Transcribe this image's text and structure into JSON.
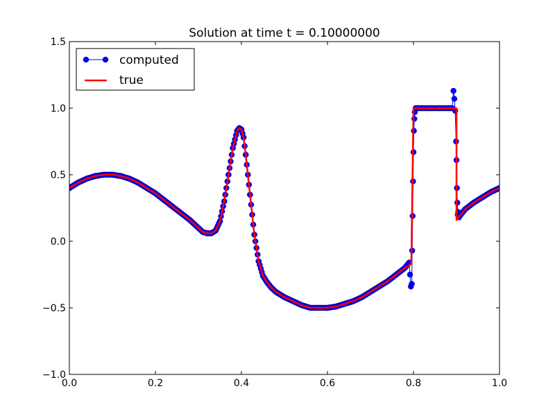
{
  "chart_data": {
    "type": "line",
    "title": "Solution at time t =     0.10000000",
    "xlabel": "",
    "ylabel": "",
    "xlim": [
      0.0,
      1.0
    ],
    "ylim": [
      -1.0,
      1.5
    ],
    "x_ticks": [
      "0.0",
      "0.2",
      "0.4",
      "0.6",
      "0.8",
      "1.0"
    ],
    "y_ticks": [
      "−1.0",
      "−0.5",
      "0.0",
      "0.5",
      "1.0",
      "1.5"
    ],
    "grid": false,
    "legend_position": "top-left",
    "series": [
      {
        "name": "computed",
        "style": "line-with-circle-markers",
        "color": "#0000ff",
        "marker_edge": "#000080",
        "x": [
          0.0,
          0.02,
          0.04,
          0.06,
          0.08,
          0.1,
          0.12,
          0.14,
          0.16,
          0.18,
          0.2,
          0.22,
          0.24,
          0.26,
          0.28,
          0.3,
          0.31,
          0.32,
          0.33,
          0.34,
          0.35,
          0.36,
          0.37,
          0.38,
          0.39,
          0.395,
          0.4,
          0.405,
          0.41,
          0.42,
          0.43,
          0.44,
          0.45,
          0.46,
          0.47,
          0.48,
          0.5,
          0.52,
          0.54,
          0.56,
          0.58,
          0.6,
          0.62,
          0.64,
          0.66,
          0.68,
          0.7,
          0.72,
          0.74,
          0.76,
          0.78,
          0.79,
          0.792,
          0.794,
          0.796,
          0.797,
          0.798,
          0.799,
          0.8,
          0.801,
          0.802,
          0.803,
          0.805,
          0.81,
          0.82,
          0.84,
          0.86,
          0.88,
          0.89,
          0.893,
          0.895,
          0.897,
          0.899,
          0.9,
          0.901,
          0.902,
          0.903,
          0.904,
          0.906,
          0.91,
          0.92,
          0.94,
          0.96,
          0.98,
          1.0
        ],
        "y": [
          0.4,
          0.44,
          0.47,
          0.49,
          0.5,
          0.5,
          0.49,
          0.47,
          0.44,
          0.4,
          0.36,
          0.31,
          0.26,
          0.21,
          0.16,
          0.1,
          0.07,
          0.06,
          0.06,
          0.08,
          0.15,
          0.3,
          0.5,
          0.7,
          0.83,
          0.85,
          0.84,
          0.78,
          0.65,
          0.35,
          0.05,
          -0.15,
          -0.26,
          -0.31,
          -0.35,
          -0.38,
          -0.42,
          -0.45,
          -0.48,
          -0.5,
          -0.5,
          -0.5,
          -0.49,
          -0.47,
          -0.45,
          -0.42,
          -0.38,
          -0.34,
          -0.3,
          -0.25,
          -0.2,
          -0.16,
          -0.25,
          -0.34,
          -0.32,
          -0.07,
          0.19,
          0.45,
          0.67,
          0.83,
          0.92,
          0.97,
          1.0,
          1.0,
          1.0,
          1.0,
          1.0,
          1.0,
          1.0,
          1.13,
          1.07,
          0.98,
          0.75,
          0.61,
          0.4,
          0.29,
          0.2,
          0.22,
          0.18,
          0.2,
          0.24,
          0.29,
          0.33,
          0.37,
          0.4
        ]
      },
      {
        "name": "true",
        "style": "line",
        "color": "#ff0000",
        "x": [
          0.0,
          0.02,
          0.04,
          0.06,
          0.08,
          0.1,
          0.12,
          0.14,
          0.16,
          0.18,
          0.2,
          0.22,
          0.24,
          0.26,
          0.28,
          0.3,
          0.31,
          0.32,
          0.33,
          0.34,
          0.35,
          0.36,
          0.37,
          0.38,
          0.39,
          0.395,
          0.4,
          0.405,
          0.41,
          0.42,
          0.43,
          0.44,
          0.45,
          0.46,
          0.47,
          0.48,
          0.5,
          0.52,
          0.54,
          0.56,
          0.58,
          0.6,
          0.62,
          0.64,
          0.66,
          0.68,
          0.7,
          0.72,
          0.74,
          0.76,
          0.78,
          0.795,
          0.8,
          0.9,
          0.9,
          0.92,
          0.94,
          0.96,
          0.98,
          1.0
        ],
        "y": [
          0.4,
          0.44,
          0.47,
          0.49,
          0.5,
          0.5,
          0.49,
          0.47,
          0.44,
          0.4,
          0.36,
          0.31,
          0.26,
          0.21,
          0.16,
          0.1,
          0.07,
          0.06,
          0.06,
          0.08,
          0.15,
          0.3,
          0.5,
          0.7,
          0.83,
          0.85,
          0.84,
          0.78,
          0.65,
          0.35,
          0.05,
          -0.15,
          -0.26,
          -0.31,
          -0.35,
          -0.38,
          -0.42,
          -0.45,
          -0.48,
          -0.5,
          -0.5,
          -0.5,
          -0.49,
          -0.47,
          -0.45,
          -0.42,
          -0.38,
          -0.34,
          -0.3,
          -0.25,
          -0.2,
          -0.17,
          1.0,
          1.0,
          0.16,
          0.24,
          0.29,
          0.33,
          0.37,
          0.4
        ]
      }
    ]
  }
}
